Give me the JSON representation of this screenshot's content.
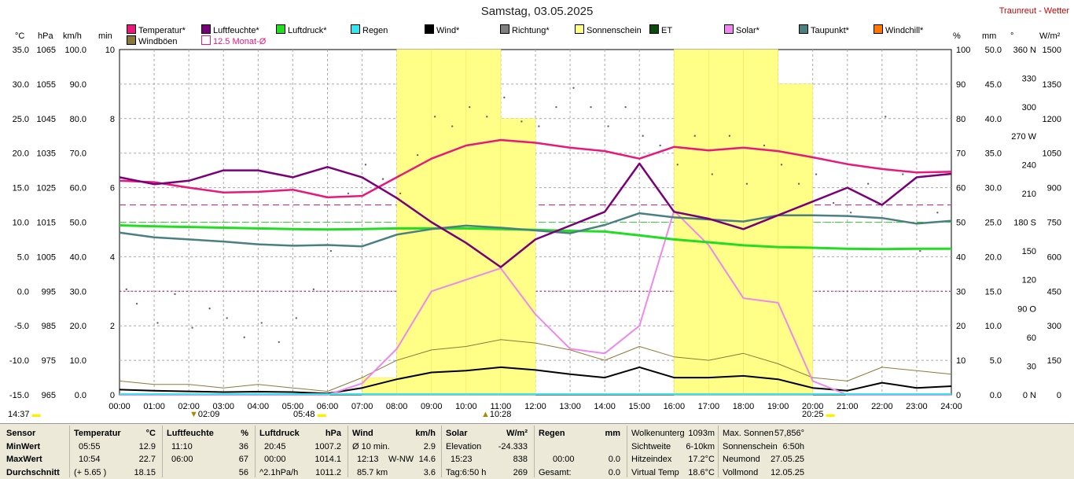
{
  "header": {
    "title": "Samstag, 03.05.2025",
    "station": "Traunreut - Wetter"
  },
  "units": {
    "left": [
      "°C",
      "hPa",
      "km/h",
      "min"
    ],
    "right": [
      "%",
      "mm",
      "°",
      "W/m²"
    ]
  },
  "legend": [
    {
      "label": "Temperatur*",
      "color": "#e8197a"
    },
    {
      "label": "Luftfeuchte*",
      "color": "#7a007a"
    },
    {
      "label": "Luftdruck*",
      "color": "#22dd22"
    },
    {
      "label": "Regen",
      "color": "#33e6f0"
    },
    {
      "label": "Wind*",
      "color": "#000000"
    },
    {
      "label": "Richtung*",
      "color": "#7f7f7f"
    },
    {
      "label": "Sonnenschein",
      "color": "#ffff88"
    },
    {
      "label": "ET",
      "color": "#0a4a0a"
    },
    {
      "label": "Solar*",
      "color": "#ee88ee"
    },
    {
      "label": "Taupunkt*",
      "color": "#4a8080"
    },
    {
      "label": "Windchill*",
      "color": "#ff7700"
    },
    {
      "label": "Windböen",
      "color": "#8a7a3a"
    },
    {
      "label": "12.5 Monat-Ø",
      "color": "#e8197a",
      "outline": true
    }
  ],
  "axes": {
    "temp": [
      "35.0",
      "30.0",
      "25.0",
      "20.0",
      "15.0",
      "10.0",
      "5.0",
      "0.0",
      "-5.0",
      "-10.0",
      "-15.0"
    ],
    "hpa": [
      "1065",
      "1055",
      "1045",
      "1035",
      "1025",
      "1015",
      "1005",
      "995",
      "985",
      "975",
      "965"
    ],
    "kmh": [
      "100.0",
      "90.0",
      "80.0",
      "70.0",
      "60.0",
      "50.0",
      "40.0",
      "30.0",
      "20.0",
      "10.0",
      "0.0"
    ],
    "min": [
      "10",
      "8",
      "6",
      "4",
      "2",
      "0"
    ],
    "pct": [
      "100",
      "90",
      "80",
      "70",
      "60",
      "50",
      "40",
      "30",
      "20",
      "10",
      "0"
    ],
    "mm": [
      "50.0",
      "45.0",
      "40.0",
      "35.0",
      "30.0",
      "25.0",
      "20.0",
      "15.0",
      "10.0",
      "5.0",
      "0.0"
    ],
    "deg": [
      "360 N",
      "330",
      "300",
      "270 W",
      "240",
      "210",
      "180 S",
      "150",
      "120",
      "90 O",
      "60",
      "30",
      "0 N"
    ],
    "wm2": [
      "1500",
      "1350",
      "1200",
      "1050",
      "900",
      "750",
      "600",
      "450",
      "300",
      "150",
      "0"
    ],
    "time": [
      "00:00",
      "01:00",
      "02:00",
      "03:00",
      "04:00",
      "05:00",
      "06:00",
      "07:00",
      "08:00",
      "09:00",
      "10:00",
      "11:00",
      "12:00",
      "13:00",
      "14:00",
      "15:00",
      "16:00",
      "17:00",
      "18:00",
      "19:00",
      "20:00",
      "21:00",
      "22:00",
      "23:00",
      "24:00"
    ]
  },
  "markers": {
    "last_update": "14:37",
    "t_min": "02:09",
    "sunrise": "05:48",
    "t_max": "10:28",
    "sunset": "20:25"
  },
  "stats": {
    "headers": {
      "sensor": "Sensor",
      "temp": "Temperatur",
      "temp_unit": "°C",
      "hum": "Luftfeuchte",
      "hum_unit": "%",
      "press": "Luftdruck",
      "press_unit": "hPa",
      "wind": "Wind",
      "wind_unit": "km/h",
      "solar": "Solar",
      "solar_unit": "W/m²",
      "rain": "Regen",
      "rain_unit": "mm"
    },
    "rows": [
      "MinWert",
      "MaxWert",
      "Durchschnitt"
    ],
    "temp": [
      [
        "05:55",
        "12.9"
      ],
      [
        "10:54",
        "22.7"
      ],
      [
        "(+ 5.65 )",
        "18.15"
      ]
    ],
    "hum": [
      [
        "11:10",
        "36"
      ],
      [
        "06:00",
        "67"
      ],
      [
        "",
        "56"
      ]
    ],
    "press": [
      [
        "20:45",
        "1007.2"
      ],
      [
        "00:00",
        "1014.1"
      ],
      [
        "^2.1hPa/h",
        "1011.2"
      ]
    ],
    "wind": [
      [
        "Ø 10 min.",
        "",
        "2.9"
      ],
      [
        "12:13",
        "W-NW",
        "14.6"
      ],
      [
        "85.7 km",
        "",
        "3.6"
      ]
    ],
    "solar": [
      [
        "Elevation",
        "-24.333"
      ],
      [
        "15:23",
        "838"
      ],
      [
        "Tag:6:50 h",
        "269"
      ]
    ],
    "rain": [
      [
        "",
        ""
      ],
      [
        "00:00",
        "0.0"
      ],
      [
        "Gesamt:",
        "0.0"
      ]
    ],
    "misc1": [
      [
        "Wolkenunterg",
        "1093m"
      ],
      [
        "Sichtweite",
        "6-10km"
      ],
      [
        "Hitzeindex",
        "17.2°C"
      ],
      [
        "Virtual Temp",
        "18.6°C"
      ]
    ],
    "misc2": [
      [
        "Max. Sonnen",
        "57,856°"
      ],
      [
        "Sonnenschein",
        "6:50h"
      ],
      [
        "Neumond",
        "27.05.25"
      ],
      [
        "Vollmond",
        "12.05.25"
      ]
    ]
  },
  "chart_data": {
    "type": "line",
    "title": "Samstag, 03.05.2025",
    "x_range": [
      "00:00",
      "24:00"
    ],
    "x": [
      "00:00",
      "01:00",
      "02:00",
      "03:00",
      "04:00",
      "05:00",
      "06:00",
      "07:00",
      "08:00",
      "09:00",
      "10:00",
      "11:00",
      "12:00",
      "13:00",
      "14:00",
      "15:00",
      "16:00",
      "17:00",
      "18:00",
      "19:00",
      "20:00",
      "21:00",
      "22:00",
      "23:00",
      "24:00"
    ],
    "series": [
      {
        "name": "Temperatur*",
        "unit": "°C",
        "values": [
          16.0,
          15.8,
          15.0,
          14.3,
          14.4,
          14.7,
          13.6,
          13.8,
          16.5,
          19.2,
          21.1,
          21.9,
          21.5,
          20.8,
          20.3,
          19.2,
          20.9,
          20.4,
          20.8,
          20.3,
          19.4,
          18.4,
          17.7,
          17.2,
          17.3
        ]
      },
      {
        "name": "Luftfeuchte*",
        "unit": "%",
        "values": [
          63,
          61,
          62,
          65,
          65,
          63,
          66,
          63,
          57,
          50,
          44,
          37,
          45,
          49,
          53,
          67,
          53,
          51,
          48,
          52,
          56,
          60,
          55,
          63,
          64
        ]
      },
      {
        "name": "Luftdruck*",
        "unit": "hPa",
        "values": [
          1014.1,
          1013.8,
          1013.6,
          1013.4,
          1013.2,
          1013.0,
          1012.9,
          1013.0,
          1013.2,
          1013.2,
          1013.2,
          1013.0,
          1012.8,
          1012.5,
          1012.3,
          1011.2,
          1010.0,
          1009.2,
          1008.3,
          1007.8,
          1007.6,
          1007.3,
          1007.2,
          1007.3,
          1007.3
        ]
      },
      {
        "name": "Taupunkt*",
        "unit": "°C",
        "values": [
          8.5,
          7.8,
          7.5,
          7.2,
          6.8,
          6.6,
          6.7,
          6.5,
          8.2,
          9.0,
          9.5,
          9.2,
          8.8,
          8.4,
          9.6,
          11.3,
          10.7,
          10.4,
          10.1,
          11.0,
          11.0,
          10.9,
          10.6,
          9.8,
          10.2
        ]
      },
      {
        "name": "Wind*",
        "unit": "km/h",
        "values": [
          1.5,
          1.2,
          1.0,
          0.8,
          0.9,
          0.8,
          0.4,
          2.0,
          4.5,
          6.5,
          7.0,
          8.0,
          7.2,
          6.0,
          5.0,
          8.0,
          5.0,
          5.0,
          5.5,
          4.5,
          2.0,
          1.2,
          3.5,
          2.0,
          2.5
        ]
      },
      {
        "name": "Windböen",
        "unit": "km/h",
        "values": [
          4,
          3,
          3,
          2,
          3,
          2,
          1,
          5,
          10,
          13,
          14,
          16,
          15,
          13,
          10,
          14,
          11,
          10,
          12,
          9,
          5,
          4,
          8,
          7,
          6
        ]
      },
      {
        "name": "Solar*",
        "unit": "W/m²",
        "values": [
          0,
          0,
          0,
          0,
          0,
          0,
          0,
          50,
          200,
          450,
          500,
          550,
          350,
          200,
          180,
          300,
          800,
          650,
          420,
          400,
          60,
          0,
          0,
          0,
          0
        ]
      },
      {
        "name": "Sonnenschein",
        "unit": "min",
        "values": [
          0,
          0,
          0,
          0,
          0,
          0,
          0,
          0.5,
          10,
          10,
          10,
          8,
          0,
          0,
          0,
          0,
          10,
          10,
          10,
          9,
          0,
          0,
          0,
          0,
          0
        ]
      }
    ],
    "wind_direction_deg": [
      [
        0.2,
        110
      ],
      [
        0.5,
        95
      ],
      [
        1.1,
        75
      ],
      [
        1.6,
        105
      ],
      [
        2.1,
        70
      ],
      [
        2.6,
        90
      ],
      [
        3.1,
        80
      ],
      [
        3.6,
        60
      ],
      [
        4.1,
        75
      ],
      [
        4.6,
        55
      ],
      [
        5.1,
        80
      ],
      [
        5.6,
        110
      ],
      [
        6.1,
        150
      ],
      [
        6.6,
        210
      ],
      [
        7.1,
        240
      ],
      [
        7.6,
        225
      ],
      [
        8.1,
        210
      ],
      [
        8.6,
        250
      ],
      [
        9.1,
        290
      ],
      [
        9.6,
        280
      ],
      [
        10.1,
        300
      ],
      [
        10.6,
        290
      ],
      [
        11.1,
        310
      ],
      [
        11.6,
        285
      ],
      [
        12.1,
        280
      ],
      [
        12.6,
        300
      ],
      [
        13.1,
        320
      ],
      [
        13.6,
        300
      ],
      [
        14.1,
        280
      ],
      [
        14.6,
        300
      ],
      [
        15.1,
        270
      ],
      [
        15.6,
        260
      ],
      [
        16.1,
        240
      ],
      [
        16.6,
        270
      ],
      [
        17.1,
        230
      ],
      [
        17.6,
        270
      ],
      [
        18.1,
        220
      ],
      [
        18.6,
        260
      ],
      [
        19.1,
        240
      ],
      [
        19.6,
        220
      ],
      [
        20.1,
        230
      ],
      [
        20.6,
        200
      ],
      [
        21.1,
        190
      ],
      [
        21.6,
        220
      ],
      [
        22.1,
        290
      ],
      [
        22.6,
        230
      ],
      [
        23.1,
        150
      ],
      [
        23.6,
        190
      ]
    ],
    "reference_lines": [
      {
        "name": "12.5 Monat-Ø",
        "unit": "°C",
        "value": 12.5
      },
      {
        "unit": "hPa",
        "value": 1015
      },
      {
        "unit": "°C",
        "value": 0.0
      }
    ],
    "sunshine_total": "6:50h",
    "axes": {
      "temp_range": [
        -15,
        35
      ],
      "pressure_range": [
        965,
        1065
      ],
      "wind_range": [
        0,
        100
      ],
      "sunshine_range": [
        0,
        10
      ],
      "humidity_range": [
        0,
        100
      ],
      "rain_range": [
        0,
        50
      ],
      "direction_range": [
        0,
        360
      ],
      "solar_range": [
        0,
        1500
      ]
    },
    "grid": true
  }
}
